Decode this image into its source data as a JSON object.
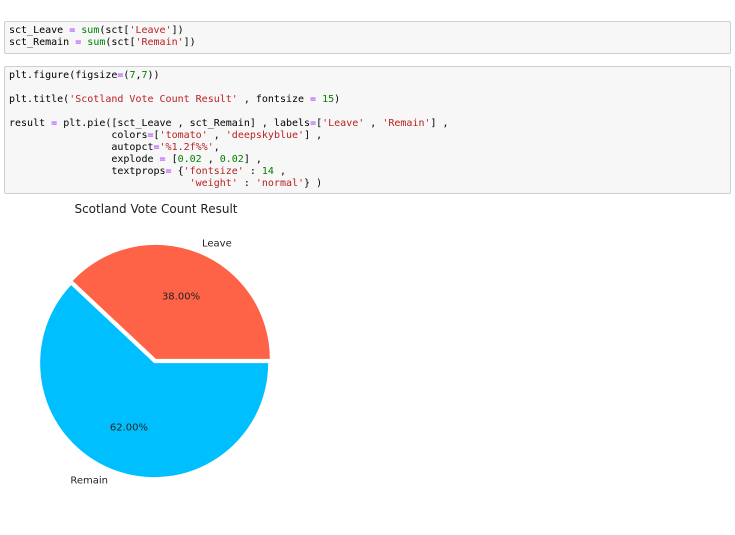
{
  "cells": [
    {
      "lines": [
        [
          {
            "t": "sct_Leave ",
            "c": "k-var"
          },
          {
            "t": "=",
            "c": "k-op"
          },
          {
            "t": " ",
            "c": "k-var"
          },
          {
            "t": "sum",
            "c": "k-fn"
          },
          {
            "t": "(sct[",
            "c": "k-var"
          },
          {
            "t": "'Leave'",
            "c": "k-str"
          },
          {
            "t": "])",
            "c": "k-var"
          }
        ],
        [
          {
            "t": "sct_Remain ",
            "c": "k-var"
          },
          {
            "t": "=",
            "c": "k-op"
          },
          {
            "t": " ",
            "c": "k-var"
          },
          {
            "t": "sum",
            "c": "k-fn"
          },
          {
            "t": "(sct[",
            "c": "k-var"
          },
          {
            "t": "'Remain'",
            "c": "k-str"
          },
          {
            "t": "])",
            "c": "k-var"
          }
        ]
      ]
    },
    {
      "lines": [
        [
          {
            "t": "plt.figure(figsize",
            "c": "k-var"
          },
          {
            "t": "=",
            "c": "k-op"
          },
          {
            "t": "(",
            "c": "k-var"
          },
          {
            "t": "7",
            "c": "k-num"
          },
          {
            "t": ",",
            "c": "k-var"
          },
          {
            "t": "7",
            "c": "k-num"
          },
          {
            "t": "))",
            "c": "k-var"
          }
        ],
        [],
        [
          {
            "t": "plt.title(",
            "c": "k-var"
          },
          {
            "t": "'Scotland Vote Count Result'",
            "c": "k-str"
          },
          {
            "t": " , fontsize ",
            "c": "k-var"
          },
          {
            "t": "=",
            "c": "k-op"
          },
          {
            "t": " ",
            "c": "k-var"
          },
          {
            "t": "15",
            "c": "k-num"
          },
          {
            "t": ")",
            "c": "k-var"
          }
        ],
        [],
        [
          {
            "t": "result ",
            "c": "k-var"
          },
          {
            "t": "=",
            "c": "k-op"
          },
          {
            "t": " plt.pie([sct_Leave , sct_Remain] , labels",
            "c": "k-var"
          },
          {
            "t": "=",
            "c": "k-op"
          },
          {
            "t": "[",
            "c": "k-var"
          },
          {
            "t": "'Leave'",
            "c": "k-str"
          },
          {
            "t": " , ",
            "c": "k-var"
          },
          {
            "t": "'Remain'",
            "c": "k-str"
          },
          {
            "t": "] ,",
            "c": "k-var"
          }
        ],
        [
          {
            "t": "                 colors",
            "c": "k-var"
          },
          {
            "t": "=",
            "c": "k-op"
          },
          {
            "t": "[",
            "c": "k-var"
          },
          {
            "t": "'tomato'",
            "c": "k-str"
          },
          {
            "t": " , ",
            "c": "k-var"
          },
          {
            "t": "'deepskyblue'",
            "c": "k-str"
          },
          {
            "t": "] ,",
            "c": "k-var"
          }
        ],
        [
          {
            "t": "                 autopct",
            "c": "k-var"
          },
          {
            "t": "=",
            "c": "k-op"
          },
          {
            "t": "'%1.2f%%'",
            "c": "k-str"
          },
          {
            "t": ",",
            "c": "k-var"
          }
        ],
        [
          {
            "t": "                 explode ",
            "c": "k-var"
          },
          {
            "t": "=",
            "c": "k-op"
          },
          {
            "t": " [",
            "c": "k-var"
          },
          {
            "t": "0.02",
            "c": "k-num"
          },
          {
            "t": " , ",
            "c": "k-var"
          },
          {
            "t": "0.02",
            "c": "k-num"
          },
          {
            "t": "] ,",
            "c": "k-var"
          }
        ],
        [
          {
            "t": "                 textprops",
            "c": "k-var"
          },
          {
            "t": "=",
            "c": "k-op"
          },
          {
            "t": " {",
            "c": "k-var"
          },
          {
            "t": "'fontsize'",
            "c": "k-str"
          },
          {
            "t": " : ",
            "c": "k-var"
          },
          {
            "t": "14",
            "c": "k-num"
          },
          {
            "t": " ,",
            "c": "k-var"
          }
        ],
        [
          {
            "t": "                              ",
            "c": "k-var"
          },
          {
            "t": "'weight'",
            "c": "k-str"
          },
          {
            "t": " : ",
            "c": "k-var"
          },
          {
            "t": "'normal'",
            "c": "k-str"
          },
          {
            "t": "} )",
            "c": "k-var"
          }
        ]
      ]
    }
  ],
  "chart_data": {
    "type": "pie",
    "title": "Scotland Vote Count Result",
    "labels": [
      "Leave",
      "Remain"
    ],
    "values": [
      38.0,
      62.0
    ],
    "autopct": [
      "38.00%",
      "62.00%"
    ],
    "colors": [
      "#ff6347",
      "#00bfff"
    ],
    "startangle": 0,
    "explode": [
      0.02,
      0.02
    ]
  }
}
